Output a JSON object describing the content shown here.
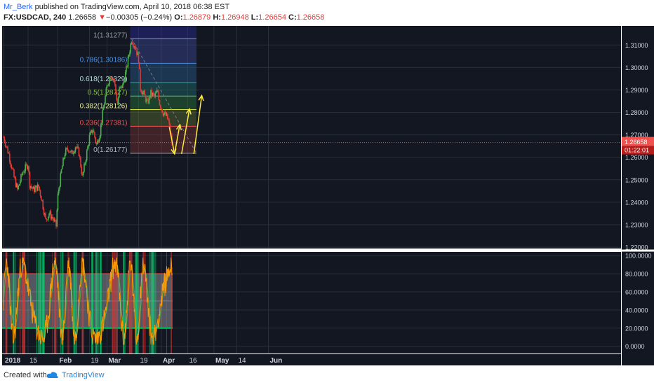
{
  "header": {
    "author": "Mr_Berk",
    "published_text": "published on TradingView.com, April 10, 2018 06:38 EST",
    "symbol": "FX:USDCAD, 240",
    "last": "1.26658",
    "change_arrow": "▼",
    "change": "−0.00305 (−0.24%)",
    "o_label": "O:",
    "o": "1.26879",
    "h_label": "H:",
    "h": "1.26948",
    "l_label": "L:",
    "l": "1.26654",
    "c_label": "C:",
    "c": "1.26658"
  },
  "footer": {
    "created_with": "Created with",
    "brand": "TradingView"
  },
  "colors": {
    "background": "#131722",
    "up": "#4caf50",
    "down": "#e53935",
    "price_line": "#ef5350",
    "arrow": "#ffeb3b",
    "stoch": "#ff9800"
  },
  "chart_data": [
    {
      "type": "candlestick",
      "symbol": "FX:USDCAD",
      "timeframe": "240",
      "y_ticks": [
        "1.31000",
        "1.30000",
        "1.29000",
        "1.28000",
        "1.27000",
        "1.26000",
        "1.25000",
        "1.24000",
        "1.23000",
        "1.22000"
      ],
      "ylim": [
        1.2194,
        1.3185
      ],
      "x_ticks": [
        "2018",
        "15",
        "Feb",
        "19",
        "Mar",
        "19",
        "Apr",
        "16",
        "May",
        "14",
        "Jun"
      ],
      "last_price_label": "1.26658",
      "countdown_label": "01:22:01",
      "last_price": 1.26658,
      "path_points": [
        {
          "d": 0,
          "p": 1.269
        },
        {
          "d": 3,
          "p": 1.2615
        },
        {
          "d": 6,
          "p": 1.251
        },
        {
          "d": 8,
          "p": 1.2455
        },
        {
          "d": 11,
          "p": 1.2535
        },
        {
          "d": 14,
          "p": 1.257
        },
        {
          "d": 15,
          "p": 1.248
        },
        {
          "d": 17,
          "p": 1.2455
        },
        {
          "d": 20,
          "p": 1.247
        },
        {
          "d": 22,
          "p": 1.2405
        },
        {
          "d": 24,
          "p": 1.232
        },
        {
          "d": 26,
          "p": 1.235
        },
        {
          "d": 28,
          "p": 1.233
        },
        {
          "d": 30,
          "p": 1.2295
        },
        {
          "d": 31,
          "p": 1.243
        },
        {
          "d": 33,
          "p": 1.254
        },
        {
          "d": 35,
          "p": 1.262
        },
        {
          "d": 37,
          "p": 1.264
        },
        {
          "d": 39,
          "p": 1.2615
        },
        {
          "d": 41,
          "p": 1.265
        },
        {
          "d": 43,
          "p": 1.262
        },
        {
          "d": 45,
          "p": 1.251
        },
        {
          "d": 47,
          "p": 1.26
        },
        {
          "d": 49,
          "p": 1.269
        },
        {
          "d": 51,
          "p": 1.2725
        },
        {
          "d": 53,
          "p": 1.2655
        },
        {
          "d": 55,
          "p": 1.271
        },
        {
          "d": 57,
          "p": 1.282
        },
        {
          "d": 59,
          "p": 1.2915
        },
        {
          "d": 61,
          "p": 1.297
        },
        {
          "d": 63,
          "p": 1.2945
        },
        {
          "d": 65,
          "p": 1.2835
        },
        {
          "d": 66,
          "p": 1.29
        },
        {
          "d": 68,
          "p": 1.292
        },
        {
          "d": 70,
          "p": 1.299
        },
        {
          "d": 72,
          "p": 1.308
        },
        {
          "d": 73,
          "p": 1.3125
        },
        {
          "d": 75,
          "p": 1.3095
        },
        {
          "d": 77,
          "p": 1.304
        },
        {
          "d": 78,
          "p": 1.291
        },
        {
          "d": 80,
          "p": 1.288
        },
        {
          "d": 82,
          "p": 1.284
        },
        {
          "d": 84,
          "p": 1.2885
        },
        {
          "d": 86,
          "p": 1.287
        },
        {
          "d": 88,
          "p": 1.2895
        },
        {
          "d": 89,
          "p": 1.284
        },
        {
          "d": 91,
          "p": 1.28
        },
        {
          "d": 93,
          "p": 1.278
        },
        {
          "d": 94,
          "p": 1.276
        },
        {
          "d": 96,
          "p": 1.2665
        }
      ],
      "fibonacci": [
        {
          "label": "1(1.31277)",
          "price": 1.31277
        },
        {
          "label": "0.786(1.30186)",
          "price": 1.30186
        },
        {
          "label": "0.618(1.29329)",
          "price": 1.29329
        },
        {
          "label": "0.5(1.28727)",
          "price": 1.28727
        },
        {
          "label": "0.382(1.28126)",
          "price": 1.28126
        },
        {
          "label": "0.236(1.27381)",
          "price": 1.27381
        },
        {
          "label": "0(1.26177)",
          "price": 1.26177
        }
      ],
      "projection_arrows": [
        {
          "from": [
            94.5,
            1.2735
          ],
          "to": [
            97.5,
            1.2615
          ]
        },
        {
          "from": [
            97.5,
            1.2615
          ],
          "to": [
            100.5,
            1.2745
          ]
        },
        {
          "from": [
            101.5,
            1.2615
          ],
          "to": [
            106,
            1.2815
          ]
        },
        {
          "from": [
            108.5,
            1.2615
          ],
          "to": [
            113,
            1.2875
          ]
        }
      ]
    },
    {
      "type": "line",
      "indicator": "stochastic",
      "y_ticks": [
        "100.0000",
        "80.0000",
        "60.0000",
        "40.0000",
        "20.0000",
        "0.0000"
      ],
      "ylim": [
        -8,
        104
      ],
      "upper_band": 80,
      "lower_band": 20
    }
  ]
}
